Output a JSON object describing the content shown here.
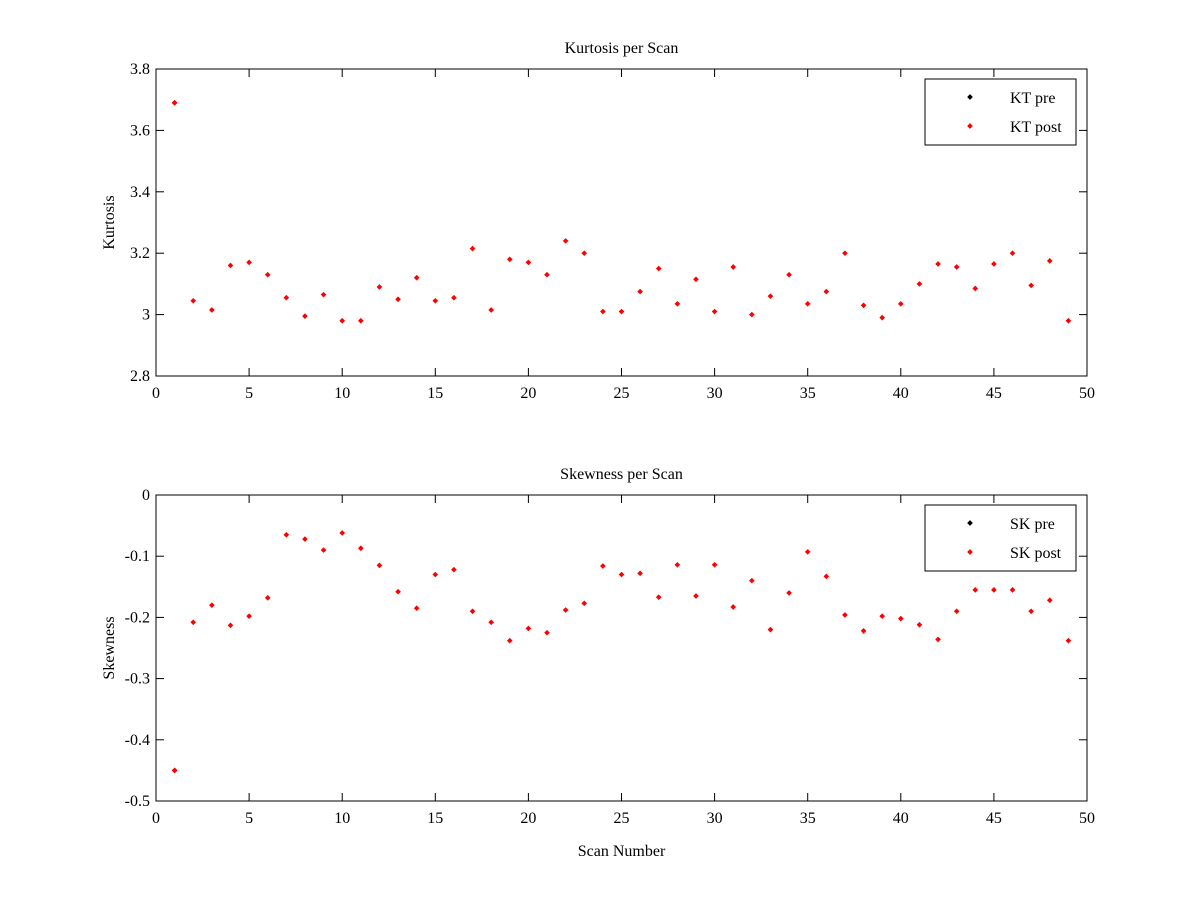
{
  "chart_data": [
    {
      "type": "scatter",
      "title": "Kurtosis per Scan",
      "xlabel": "",
      "ylabel": "Kurtosis",
      "xlim": [
        0,
        50
      ],
      "ylim": [
        2.8,
        3.8
      ],
      "xticks": [
        0,
        5,
        10,
        15,
        20,
        25,
        30,
        35,
        40,
        45,
        50
      ],
      "xtick_labels": [
        "0",
        "5",
        "10",
        "15",
        "20",
        "25",
        "30",
        "35",
        "40",
        "45",
        "50"
      ],
      "yticks": [
        2.8,
        3.0,
        3.2,
        3.4,
        3.6,
        3.8
      ],
      "ytick_labels": [
        "2.8",
        "3",
        "3.2",
        "3.4",
        "3.6",
        "3.8"
      ],
      "grid": false,
      "legend_position": "top-right",
      "series": [
        {
          "name": "KT pre",
          "color": "#000000",
          "x": [
            1
          ],
          "y": [
            3.69
          ]
        },
        {
          "name": "KT post",
          "color": "#ff0000",
          "x": [
            1,
            2,
            3,
            4,
            5,
            6,
            7,
            8,
            9,
            10,
            11,
            12,
            13,
            14,
            15,
            16,
            17,
            18,
            19,
            20,
            21,
            22,
            23,
            24,
            25,
            26,
            27,
            28,
            29,
            30,
            31,
            32,
            33,
            34,
            35,
            36,
            37,
            38,
            39,
            40,
            41,
            42,
            43,
            44,
            45,
            46,
            47,
            48,
            49
          ],
          "y": [
            3.69,
            3.045,
            3.015,
            3.16,
            3.17,
            3.13,
            3.055,
            2.995,
            3.065,
            2.98,
            2.98,
            3.09,
            3.05,
            3.12,
            3.045,
            3.055,
            3.215,
            3.015,
            3.18,
            3.17,
            3.13,
            3.24,
            3.2,
            3.01,
            3.01,
            3.075,
            3.15,
            3.035,
            3.115,
            3.01,
            3.155,
            3.0,
            3.06,
            3.13,
            3.035,
            3.075,
            3.2,
            3.03,
            2.99,
            3.035,
            3.1,
            3.165,
            3.155,
            3.085,
            3.165,
            3.2,
            3.095,
            3.175,
            2.98
          ]
        }
      ]
    },
    {
      "type": "scatter",
      "title": "Skewness per Scan",
      "xlabel": "Scan Number",
      "ylabel": "Skewness",
      "xlim": [
        0,
        50
      ],
      "ylim": [
        -0.5,
        0
      ],
      "xticks": [
        0,
        5,
        10,
        15,
        20,
        25,
        30,
        35,
        40,
        45,
        50
      ],
      "xtick_labels": [
        "0",
        "5",
        "10",
        "15",
        "20",
        "25",
        "30",
        "35",
        "40",
        "45",
        "50"
      ],
      "yticks": [
        -0.5,
        -0.4,
        -0.3,
        -0.2,
        -0.1,
        0
      ],
      "ytick_labels": [
        "-0.5",
        "-0.4",
        "-0.3",
        "-0.2",
        "-0.1",
        "0"
      ],
      "grid": false,
      "legend_position": "top-right",
      "series": [
        {
          "name": "SK pre",
          "color": "#000000",
          "x": [
            1
          ],
          "y": [
            -0.45
          ]
        },
        {
          "name": "SK post",
          "color": "#ff0000",
          "x": [
            1,
            2,
            3,
            4,
            5,
            6,
            7,
            8,
            9,
            10,
            11,
            12,
            13,
            14,
            15,
            16,
            17,
            18,
            19,
            20,
            21,
            22,
            23,
            24,
            25,
            26,
            27,
            28,
            29,
            30,
            31,
            32,
            33,
            34,
            35,
            36,
            37,
            38,
            39,
            40,
            41,
            42,
            43,
            44,
            45,
            46,
            47,
            48,
            49
          ],
          "y": [
            -0.45,
            -0.208,
            -0.18,
            -0.213,
            -0.198,
            -0.168,
            -0.065,
            -0.072,
            -0.09,
            -0.062,
            -0.087,
            -0.115,
            -0.158,
            -0.185,
            -0.13,
            -0.122,
            -0.19,
            -0.208,
            -0.238,
            -0.218,
            -0.225,
            -0.188,
            -0.177,
            -0.116,
            -0.13,
            -0.128,
            -0.167,
            -0.114,
            -0.165,
            -0.114,
            -0.183,
            -0.14,
            -0.22,
            -0.16,
            -0.093,
            -0.133,
            -0.196,
            -0.222,
            -0.198,
            -0.202,
            -0.212,
            -0.236,
            -0.19,
            -0.155,
            -0.155,
            -0.155,
            -0.19,
            -0.172,
            -0.238
          ]
        }
      ]
    }
  ]
}
